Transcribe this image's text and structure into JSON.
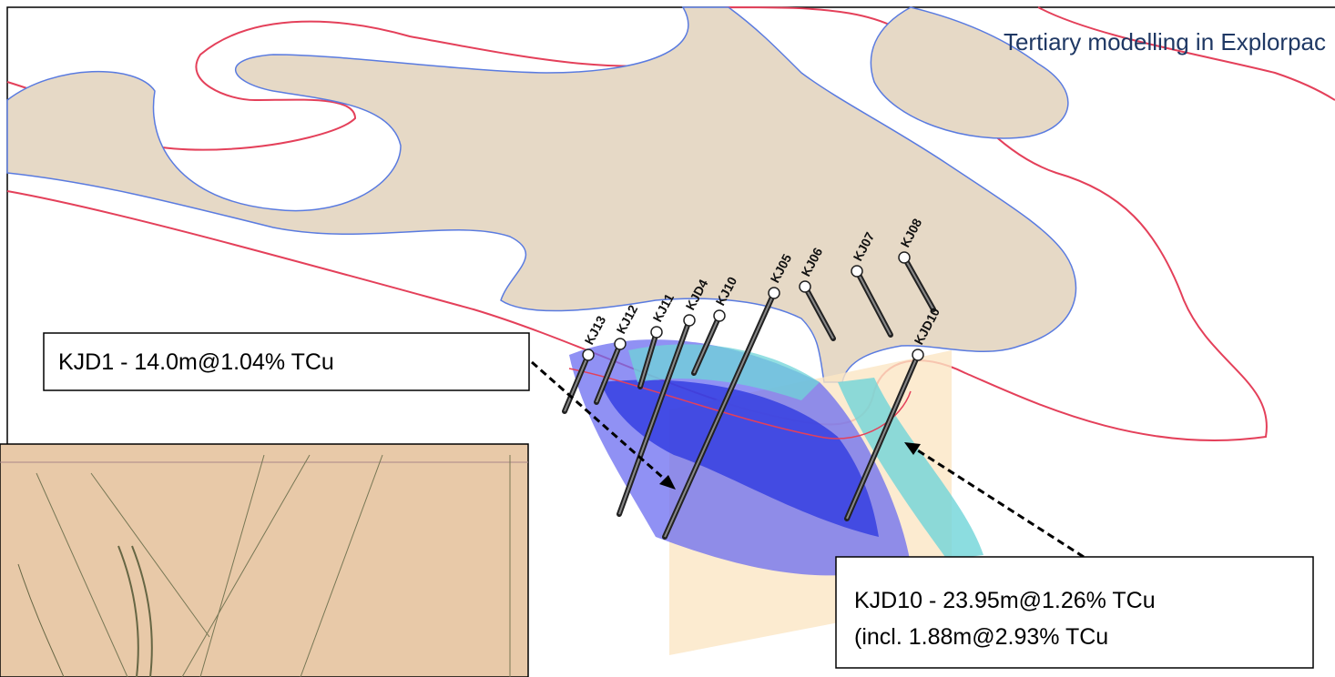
{
  "title": "Tertiary modelling in Explorpac",
  "callouts": [
    {
      "lines": [
        "KJD1 - 14.0m@1.04% TCu"
      ]
    },
    {
      "lines": [
        "KJD10 - 23.95m@1.26% TCu",
        "(incl. 1.88m@2.93% TCu"
      ]
    }
  ],
  "drillholes": [
    {
      "label": "KJ13"
    },
    {
      "label": "KJ12"
    },
    {
      "label": "KJ11"
    },
    {
      "label": "KJD4"
    },
    {
      "label": "KJ10"
    },
    {
      "label": "KJ05"
    },
    {
      "label": "KJ06"
    },
    {
      "label": "KJ07"
    },
    {
      "label": "KJ08"
    },
    {
      "label": "KJD10"
    }
  ]
}
